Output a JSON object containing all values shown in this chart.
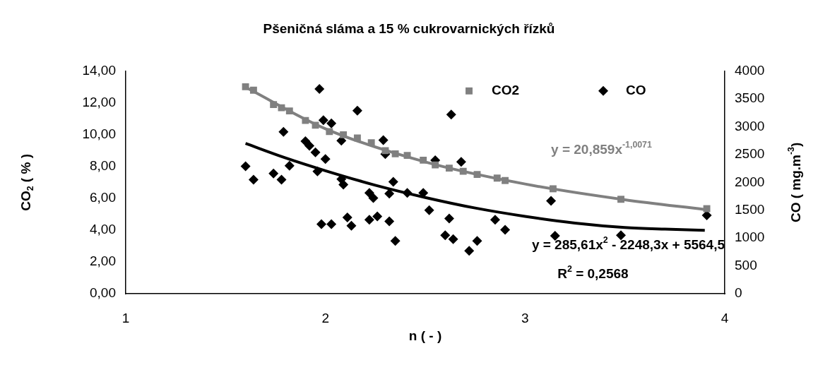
{
  "chart_data": {
    "type": "scatter",
    "title": "Pšeničná sláma a 15 % cukrovarnických řízků",
    "xlabel": "n ( - )",
    "ylabel": "CO$_{2}$ ( % )",
    "y2label": "CO ( mg.m$^{-3}$)",
    "xlim": [
      1,
      4
    ],
    "xticks": [
      1,
      2,
      3,
      4
    ],
    "ylim": [
      0,
      14
    ],
    "yticks": [
      {
        "value": 0,
        "label": "0,00"
      },
      {
        "value": 2,
        "label": "2,00"
      },
      {
        "value": 4,
        "label": "4,00"
      },
      {
        "value": 6,
        "label": "6,00"
      },
      {
        "value": 8,
        "label": "8,00"
      },
      {
        "value": 10,
        "label": "10,00"
      },
      {
        "value": 12,
        "label": "12,00"
      },
      {
        "value": 14,
        "label": "14,00"
      }
    ],
    "y2lim": [
      0,
      4000
    ],
    "y2ticks": [
      0,
      500,
      1000,
      1500,
      2000,
      2500,
      3000,
      3500,
      4000
    ],
    "grid": false,
    "legend": "top right",
    "annotations": [
      "y = 20,859x$^{-1,0071}$",
      "y = 285,61x$^{2}$ - 2248,3x + 5564,5",
      "R$^{2}$ = 0,2568"
    ],
    "series": [
      {
        "name": "CO2",
        "type": "scatter",
        "marker": "square",
        "color": "#808080",
        "x": [
          1.6,
          1.64,
          1.74,
          1.78,
          1.82,
          1.9,
          1.95,
          2.02,
          2.09,
          2.16,
          2.23,
          2.3,
          2.35,
          2.41,
          2.49,
          2.55,
          2.62,
          2.69,
          2.76,
          2.86,
          2.9,
          3.14,
          3.48,
          3.91
        ],
        "values": [
          13.02,
          12.8,
          11.9,
          11.7,
          11.5,
          10.9,
          10.6,
          10.2,
          10.0,
          9.8,
          9.5,
          9.0,
          8.8,
          8.7,
          8.4,
          8.1,
          7.9,
          7.7,
          7.5,
          7.27,
          7.12,
          6.6,
          5.94,
          5.35
        ]
      },
      {
        "type": "line",
        "marker": "none",
        "color": "#808080",
        "x": [
          1.6,
          2,
          2.5,
          3,
          3.5,
          3.9
        ],
        "values": [
          12.99,
          10.38,
          8.29,
          6.9,
          5.91,
          5.3
        ]
      },
      {
        "name": "CO",
        "type": "scatter",
        "axis": "y2",
        "marker": "diamond",
        "color": "#000000",
        "x": [
          1.6,
          1.64,
          1.74,
          1.78,
          1.79,
          1.82,
          1.9,
          1.92,
          1.95,
          1.96,
          1.97,
          1.99,
          1.98,
          2.0,
          2.03,
          2.03,
          2.08,
          2.08,
          2.09,
          2.11,
          2.13,
          2.16,
          2.22,
          2.24,
          2.22,
          2.26,
          2.29,
          2.3,
          2.32,
          2.32,
          2.34,
          2.35,
          2.41,
          2.49,
          2.52,
          2.55,
          2.62,
          2.6,
          2.64,
          2.63,
          2.68,
          2.76,
          2.72,
          2.85,
          2.9,
          3.13,
          3.15,
          3.48,
          3.91
        ],
        "values": [
          2290,
          2050,
          2160,
          2050,
          2910,
          2300,
          2740,
          2660,
          2540,
          2200,
          3680,
          3120,
          1250,
          2420,
          3060,
          1250,
          2750,
          2060,
          1960,
          1370,
          1220,
          3290,
          1810,
          1720,
          1330,
          1390,
          2760,
          2510,
          1800,
          1300,
          2010,
          950,
          1810,
          1810,
          1500,
          2400,
          1350,
          1050,
          980,
          3220,
          2370,
          950,
          770,
          1330,
          1150,
          1670,
          1040,
          1050,
          1410
        ]
      },
      {
        "type": "line",
        "axis": "y2",
        "marker": "none",
        "color": "#000000",
        "x": [
          1.6,
          1.8,
          2,
          2.25,
          2.5,
          2.75,
          3,
          3.25,
          3.5,
          3.7,
          3.9
        ],
        "values": [
          2700,
          2440,
          2210,
          1950,
          1730,
          1540,
          1390,
          1270,
          1190,
          1160,
          1140
        ]
      }
    ]
  }
}
